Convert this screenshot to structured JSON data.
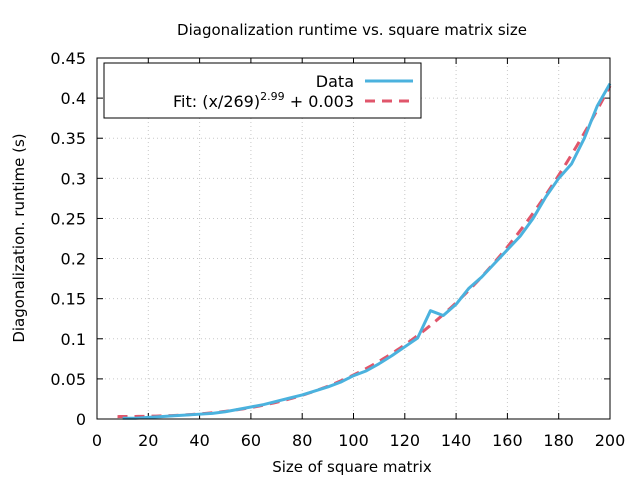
{
  "chart_data": {
    "type": "line",
    "title": "Diagonalization runtime vs. square matrix size",
    "xlabel": "Size of square matrix",
    "ylabel": "Diagonalization. runtime (s)",
    "xlim": [
      0,
      200
    ],
    "ylim": [
      0,
      0.45
    ],
    "x_ticks": [
      0,
      20,
      40,
      60,
      80,
      100,
      120,
      140,
      160,
      180,
      200
    ],
    "y_ticks": [
      0,
      0.05,
      0.1,
      0.15,
      0.2,
      0.25,
      0.3,
      0.35,
      0.4,
      0.45
    ],
    "x_tick_labels": [
      "0",
      "20",
      "40",
      "60",
      "80",
      "100",
      "120",
      "140",
      "160",
      "180",
      "200"
    ],
    "y_tick_labels": [
      "0",
      "0.05",
      "0.1",
      "0.15",
      "0.2",
      "0.25",
      "0.3",
      "0.35",
      "0.4",
      "0.45"
    ],
    "grid": true,
    "legend_position": "top-left",
    "series": [
      {
        "name": "Data",
        "style": "solid",
        "color": "#4bb2de",
        "x": [
          10,
          15,
          20,
          25,
          30,
          35,
          40,
          45,
          50,
          55,
          60,
          65,
          70,
          75,
          80,
          85,
          90,
          95,
          100,
          105,
          110,
          115,
          120,
          125,
          130,
          135,
          140,
          145,
          150,
          155,
          160,
          165,
          170,
          175,
          180,
          185,
          190,
          195,
          200
        ],
        "y": [
          0.001,
          0.001,
          0.002,
          0.003,
          0.004,
          0.005,
          0.006,
          0.007,
          0.009,
          0.012,
          0.015,
          0.018,
          0.022,
          0.026,
          0.03,
          0.035,
          0.04,
          0.046,
          0.054,
          0.06,
          0.069,
          0.079,
          0.09,
          0.101,
          0.135,
          0.129,
          0.143,
          0.163,
          0.177,
          0.194,
          0.211,
          0.228,
          0.25,
          0.277,
          0.3,
          0.318,
          0.35,
          0.39,
          0.418
        ]
      },
      {
        "name": "Fit: (x/269)^2.99 + 0.003",
        "style": "dashed",
        "color": "#e0566b",
        "fit": {
          "scale": 269,
          "exponent": 2.99,
          "offset": 0.003
        },
        "x_range": [
          8,
          200
        ]
      }
    ],
    "legend": {
      "data_label": "Data",
      "fit_prefix": "Fit: (x/269)",
      "fit_exponent": "2.99",
      "fit_suffix": " + 0.003"
    }
  }
}
